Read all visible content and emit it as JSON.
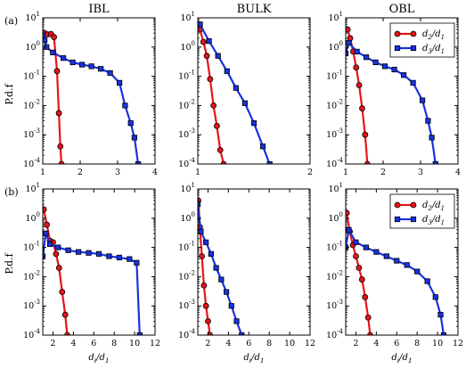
{
  "figure": {
    "ylabel": "P.d.f",
    "xlabel": "d_i/d_1",
    "row_labels": [
      "(a)",
      "(b)"
    ]
  },
  "chart_data": [
    {
      "type": "line",
      "row": 0,
      "col": 0,
      "title": "IBL",
      "xlim": [
        1,
        4
      ],
      "ylim": [
        0.0001,
        10
      ],
      "yscale": "log",
      "xticks": [
        "1",
        "2",
        "3",
        "4"
      ],
      "xlabel": "",
      "ylabel": "P.d.f",
      "series": [
        {
          "name": "d2/d1",
          "color": "#e8141a",
          "marker": "circle",
          "x": [
            1.05,
            1.13,
            1.22,
            1.3,
            1.38,
            1.43,
            1.47,
            1.5
          ],
          "y": [
            3.0,
            2.7,
            2.8,
            2.2,
            0.15,
            0.0055,
            0.0004,
            0.0001
          ]
        },
        {
          "name": "d3/d1",
          "color": "#1932e0",
          "marker": "square",
          "x": [
            1.0,
            1.05,
            1.1,
            1.27,
            1.55,
            1.8,
            2.05,
            2.3,
            2.55,
            2.8,
            3.05,
            3.2,
            3.35,
            3.45,
            3.55
          ],
          "y": [
            2.5,
            1.7,
            1.0,
            0.65,
            0.42,
            0.3,
            0.25,
            0.22,
            0.18,
            0.13,
            0.06,
            0.01,
            0.0025,
            0.0008,
            0.0001
          ]
        }
      ]
    },
    {
      "type": "line",
      "row": 0,
      "col": 1,
      "title": "BULK",
      "xlim": [
        1,
        2
      ],
      "ylim": [
        0.0001,
        10
      ],
      "yscale": "log",
      "xticks": [
        "1",
        "2"
      ],
      "xlabel": "",
      "ylabel": "",
      "series": [
        {
          "name": "d2/d1",
          "color": "#e8141a",
          "marker": "circle",
          "x": [
            1.02,
            1.05,
            1.08,
            1.11,
            1.14,
            1.17,
            1.2,
            1.23
          ],
          "y": [
            4.0,
            1.5,
            0.5,
            0.08,
            0.01,
            0.002,
            0.0003,
            0.0001
          ]
        },
        {
          "name": "d3/d1",
          "color": "#1932e0",
          "marker": "square",
          "x": [
            1.02,
            1.1,
            1.18,
            1.26,
            1.34,
            1.42,
            1.5,
            1.58,
            1.64
          ],
          "y": [
            6.0,
            1.6,
            0.5,
            0.15,
            0.04,
            0.012,
            0.0025,
            0.0004,
            0.0001
          ]
        }
      ]
    },
    {
      "type": "line",
      "row": 0,
      "col": 2,
      "title": "OBL",
      "xlim": [
        1,
        4
      ],
      "ylim": [
        0.0001,
        10
      ],
      "yscale": "log",
      "xticks": [
        "1",
        "2",
        "3",
        "4"
      ],
      "xlabel": "",
      "ylabel": "",
      "legend_loc": "top-right",
      "series": [
        {
          "name": "d2/d1",
          "color": "#e8141a",
          "marker": "circle",
          "x": [
            1.05,
            1.12,
            1.2,
            1.28,
            1.36,
            1.44,
            1.52,
            1.58
          ],
          "y": [
            4.0,
            2.0,
            0.7,
            0.2,
            0.05,
            0.008,
            0.001,
            0.0001
          ]
        },
        {
          "name": "d3/d1",
          "color": "#1932e0",
          "marker": "square",
          "x": [
            1.0,
            1.08,
            1.3,
            1.55,
            1.8,
            2.05,
            2.3,
            2.55,
            2.8,
            3.05,
            3.2,
            3.3,
            3.4
          ],
          "y": [
            0.6,
            1.4,
            0.7,
            0.45,
            0.3,
            0.22,
            0.17,
            0.11,
            0.06,
            0.015,
            0.003,
            0.0008,
            0.0001
          ]
        }
      ]
    },
    {
      "type": "line",
      "row": 1,
      "col": 0,
      "title": "",
      "xlim": [
        1,
        12
      ],
      "ylim": [
        0.0001,
        10
      ],
      "yscale": "log",
      "xticks": [
        "2",
        "4",
        "6",
        "8",
        "10",
        "12"
      ],
      "xlabel": "d_i/d_1",
      "ylabel": "P.d.f",
      "series": [
        {
          "name": "d2/d1",
          "color": "#e8141a",
          "marker": "circle",
          "x": [
            1.1,
            1.4,
            1.7,
            2.0,
            2.3,
            2.6,
            2.9,
            3.2,
            3.4
          ],
          "y": [
            2.0,
            0.6,
            0.17,
            0.15,
            0.06,
            0.02,
            0.003,
            0.0005,
            0.0001
          ]
        },
        {
          "name": "d3/d1",
          "color": "#1932e0",
          "marker": "square",
          "x": [
            1.0,
            1.3,
            1.7,
            2.5,
            3.5,
            4.5,
            5.5,
            6.5,
            7.5,
            8.5,
            9.5,
            10.2,
            10.5
          ],
          "y": [
            0.05,
            0.3,
            0.13,
            0.1,
            0.08,
            0.07,
            0.065,
            0.06,
            0.05,
            0.045,
            0.04,
            0.03,
            0.0001
          ]
        }
      ]
    },
    {
      "type": "line",
      "row": 1,
      "col": 1,
      "title": "",
      "xlim": [
        1,
        12
      ],
      "ylim": [
        0.0001,
        10
      ],
      "yscale": "log",
      "xticks": [
        "2",
        "4",
        "6",
        "8",
        "10",
        "12"
      ],
      "xlabel": "d_i/d_1",
      "ylabel": "",
      "series": [
        {
          "name": "d2/d1",
          "color": "#e8141a",
          "marker": "circle",
          "x": [
            1.05,
            1.2,
            1.4,
            1.6,
            1.8,
            2.0,
            2.2
          ],
          "y": [
            4.0,
            0.5,
            0.05,
            0.005,
            0.001,
            0.0003,
            0.0001
          ]
        },
        {
          "name": "d3/d1",
          "color": "#1932e0",
          "marker": "square",
          "x": [
            1.0,
            1.3,
            1.8,
            2.3,
            2.8,
            3.3,
            3.8,
            4.3,
            4.8,
            5.3
          ],
          "y": [
            3.0,
            0.35,
            0.15,
            0.06,
            0.02,
            0.008,
            0.003,
            0.001,
            0.0003,
            0.0001
          ]
        }
      ]
    },
    {
      "type": "line",
      "row": 1,
      "col": 2,
      "title": "",
      "xlim": [
        1,
        12
      ],
      "ylim": [
        0.0001,
        10
      ],
      "yscale": "log",
      "xticks": [
        "2",
        "4",
        "6",
        "8",
        "10",
        "12"
      ],
      "xlabel": "d_i/d_1",
      "ylabel": "",
      "legend_loc": "top-right",
      "series": [
        {
          "name": "d2/d1",
          "color": "#e8141a",
          "marker": "circle",
          "x": [
            1.1,
            1.4,
            1.7,
            2.0,
            2.3,
            2.6,
            2.9,
            3.2,
            3.4
          ],
          "y": [
            1.5,
            0.35,
            0.12,
            0.05,
            0.02,
            0.008,
            0.002,
            0.0004,
            0.0001
          ]
        },
        {
          "name": "d3/d1",
          "color": "#1932e0",
          "marker": "square",
          "x": [
            1.0,
            1.3,
            2.0,
            3.0,
            4.0,
            5.0,
            6.0,
            7.0,
            8.0,
            9.0,
            9.8,
            10.3,
            10.6
          ],
          "y": [
            0.1,
            0.4,
            0.15,
            0.1,
            0.07,
            0.05,
            0.035,
            0.025,
            0.015,
            0.007,
            0.002,
            0.0005,
            0.0001
          ]
        }
      ]
    }
  ]
}
